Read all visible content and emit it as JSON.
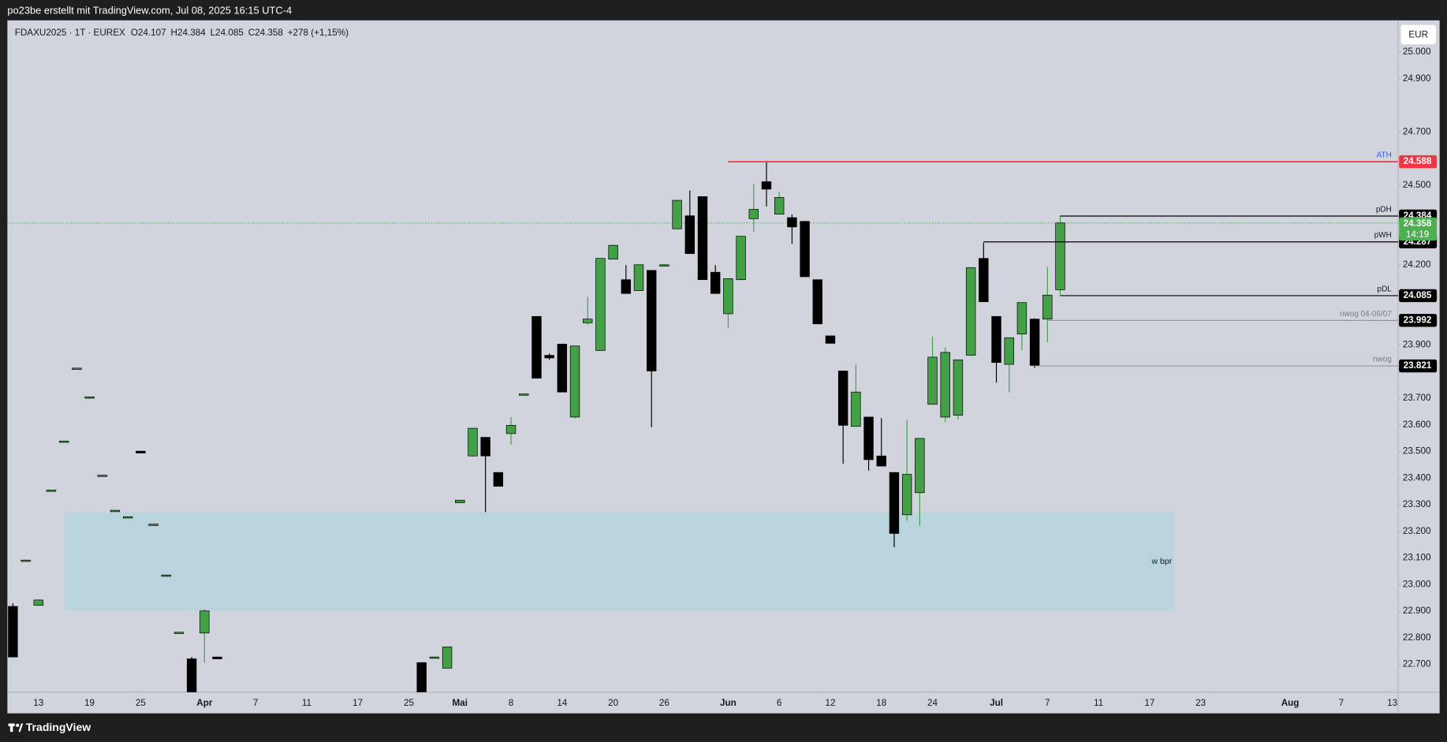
{
  "header": {
    "title": "po23be erstellt mit TradingView.com, Jul 08, 2025 16:15 UTC-4"
  },
  "chart_data": {
    "type": "candlestick",
    "symbol": "FDAXU2025 · 1T · EUREX",
    "quote": {
      "o": "O24.107",
      "h": "H24.384",
      "l": "L24.085",
      "c": "C24.358",
      "change": "+278 (+1,15%)"
    },
    "currency": "EUR",
    "up_color": "#43a047",
    "down_color": "#000000",
    "open": [
      22918,
      23092,
      22922,
      23355,
      23539,
      23813,
      23705,
      23411,
      23279,
      23255,
      23501,
      23227,
      23036,
      22821,
      22721,
      22818,
      22728,
      null,
      null,
      null,
      null,
      null,
      null,
      null,
      null,
      null,
      null,
      null,
      null,
      null,
      null,
      null,
      22707,
      22728,
      22686,
      23307,
      23483,
      23553,
      23421,
      23567,
      23716,
      24007,
      23861,
      23903,
      23629,
      23983,
      23879,
      24222,
      24145,
      24104,
      24180,
      24201,
      24336,
      24385,
      24457,
      24173,
      24017,
      24145,
      24374,
      24513,
      24391,
      24378,
      24364,
      24145,
      23934,
      23802,
      23594,
      23629,
      23483,
      23421,
      23262,
      23345,
      23677,
      23629,
      23636,
      23861,
      24225,
      24007,
      23827,
      23941,
      23997,
      23997,
      24107
    ],
    "high": [
      22930,
      23092,
      22945,
      23355,
      23539,
      23813,
      23705,
      23411,
      23279,
      23255,
      23501,
      23227,
      23036,
      22821,
      22728,
      22908,
      22728,
      null,
      null,
      null,
      null,
      null,
      null,
      null,
      null,
      null,
      null,
      null,
      null,
      null,
      null,
      null,
      22707,
      22728,
      22766,
      23317,
      23587,
      23553,
      23421,
      23629,
      23716,
      24007,
      23868,
      23903,
      23896,
      24080,
      24225,
      24274,
      24200,
      24201,
      24180,
      24204,
      24443,
      24480,
      24457,
      24200,
      24149,
      24308,
      24505,
      24588,
      24475,
      24390,
      24364,
      24145,
      23934,
      23802,
      23826,
      23629,
      23625,
      23421,
      23618,
      23549,
      23931,
      23890,
      23844,
      24190,
      24284,
      24007,
      23927,
      24059,
      24000,
      24193,
      24384
    ],
    "low": [
      22728,
      23092,
      22920,
      23355,
      23539,
      23813,
      23705,
      23411,
      23279,
      23255,
      23494,
      23227,
      23036,
      22821,
      22596,
      22707,
      22721,
      null,
      null,
      null,
      null,
      null,
      null,
      null,
      null,
      null,
      null,
      null,
      null,
      null,
      null,
      null,
      22596,
      22728,
      22686,
      23307,
      23480,
      23272,
      23369,
      23525,
      23716,
      23775,
      23844,
      23723,
      23625,
      23975,
      23879,
      24222,
      24093,
      24104,
      23591,
      24195,
      24336,
      24243,
      24145,
      24093,
      23962,
      24145,
      24325,
      24420,
      24391,
      24280,
      24156,
      23979,
      23906,
      23454,
      23594,
      23428,
      23445,
      23140,
      23240,
      23220,
      23677,
      23610,
      23620,
      23861,
      24062,
      23758,
      23722,
      23880,
      23814,
      23910,
      24085
    ],
    "close": [
      22728,
      23092,
      22942,
      23355,
      23539,
      23813,
      23705,
      23411,
      23279,
      23255,
      23494,
      23227,
      23036,
      22821,
      22596,
      22901,
      22721,
      null,
      null,
      null,
      null,
      null,
      null,
      null,
      null,
      null,
      null,
      null,
      null,
      null,
      null,
      null,
      22596,
      22728,
      22766,
      23317,
      23587,
      23483,
      23369,
      23598,
      23716,
      23775,
      23851,
      23723,
      23896,
      23997,
      24225,
      24274,
      24093,
      24201,
      23802,
      24201,
      24443,
      24243,
      24145,
      24093,
      24149,
      24308,
      24409,
      24485,
      24454,
      24343,
      24156,
      23979,
      23906,
      23598,
      23723,
      23469,
      23445,
      23192,
      23414,
      23549,
      23854,
      23872,
      23844,
      24190,
      24062,
      23834,
      23927,
      24059,
      23823,
      24087,
      24358
    ],
    "ylim": [
      22596,
      25119
    ],
    "yticks": [
      {
        "value": 25000,
        "label": "25.000"
      },
      {
        "value": 24900,
        "label": "24.900"
      },
      {
        "value": 24700,
        "label": "24.700"
      },
      {
        "value": 24500,
        "label": "24.500"
      },
      {
        "value": 24200,
        "label": "24.200"
      },
      {
        "value": 23900,
        "label": "23.900"
      },
      {
        "value": 23700,
        "label": "23.700"
      },
      {
        "value": 23600,
        "label": "23.600"
      },
      {
        "value": 23500,
        "label": "23.500"
      },
      {
        "value": 23400,
        "label": "23.400"
      },
      {
        "value": 23300,
        "label": "23.300"
      },
      {
        "value": 23200,
        "label": "23.200"
      },
      {
        "value": 23100,
        "label": "23.100"
      },
      {
        "value": 23000,
        "label": "23.000"
      },
      {
        "value": 22900,
        "label": "22.900"
      },
      {
        "value": 22800,
        "label": "22.800"
      },
      {
        "value": 22700,
        "label": "22.700"
      }
    ],
    "xticks": [
      "13",
      "19",
      "25",
      "Apr",
      "7",
      "11",
      "17",
      "25",
      "Mai",
      "8",
      "14",
      "20",
      "26",
      "Jun",
      "6",
      "12",
      "18",
      "24",
      "Jul",
      "7",
      "11",
      "17",
      "23",
      "Aug",
      "7",
      "13"
    ],
    "levels": [
      {
        "name": "ATH",
        "value": 24588,
        "label": "24.588",
        "color": "#f23645"
      },
      {
        "name": "pDH",
        "value": 24384,
        "label": "24.384",
        "color": "#000000"
      },
      {
        "name": "pWH",
        "value": 24287,
        "label": "24.287",
        "color": "#000000"
      },
      {
        "name": "pDL",
        "value": 24085,
        "label": "24.085",
        "color": "#000000"
      },
      {
        "name": "nwog 04-06/07",
        "value": 23992,
        "label": "23.992",
        "color": "#9598a1"
      },
      {
        "name": "nwog",
        "value": 23821,
        "label": "23.821",
        "color": "#9598a1"
      }
    ],
    "last_price": {
      "value": 24358,
      "label": "24.358",
      "countdown": "14:19",
      "color": "#4caf50"
    },
    "zones": [
      {
        "name": "w bpr",
        "range": [
          22901,
          23272
        ],
        "color": "#bad4de"
      }
    ]
  },
  "footer": {
    "brand": "TradingView"
  }
}
